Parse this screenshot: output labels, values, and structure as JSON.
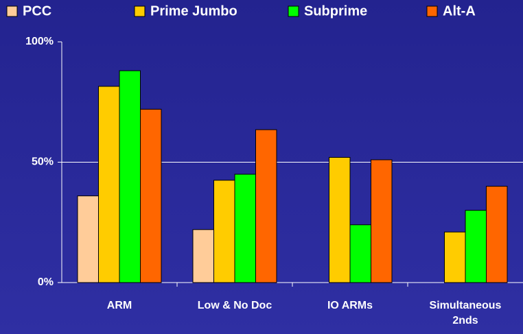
{
  "chart_data": {
    "type": "bar",
    "categories": [
      "ARM",
      "Low & No Doc",
      "IO ARMs",
      "Simultaneous 2nds"
    ],
    "series": [
      {
        "name": "PCC",
        "color": "#ffcc99",
        "values": [
          36,
          22,
          null,
          null
        ]
      },
      {
        "name": "Prime Jumbo",
        "color": "#ffcc00",
        "values": [
          81.5,
          42.5,
          52,
          21
        ]
      },
      {
        "name": "Subprime",
        "color": "#00ff00",
        "values": [
          88,
          45,
          24,
          30
        ]
      },
      {
        "name": "Alt-A",
        "color": "#ff6600",
        "values": [
          72,
          63.5,
          51,
          40
        ]
      }
    ],
    "ylim": [
      0,
      100
    ],
    "yticks": [
      {
        "value": 0,
        "label": "0%"
      },
      {
        "value": 50,
        "label": "50%"
      },
      {
        "value": 100,
        "label": "100%"
      }
    ],
    "grid": true,
    "legend": "top"
  }
}
